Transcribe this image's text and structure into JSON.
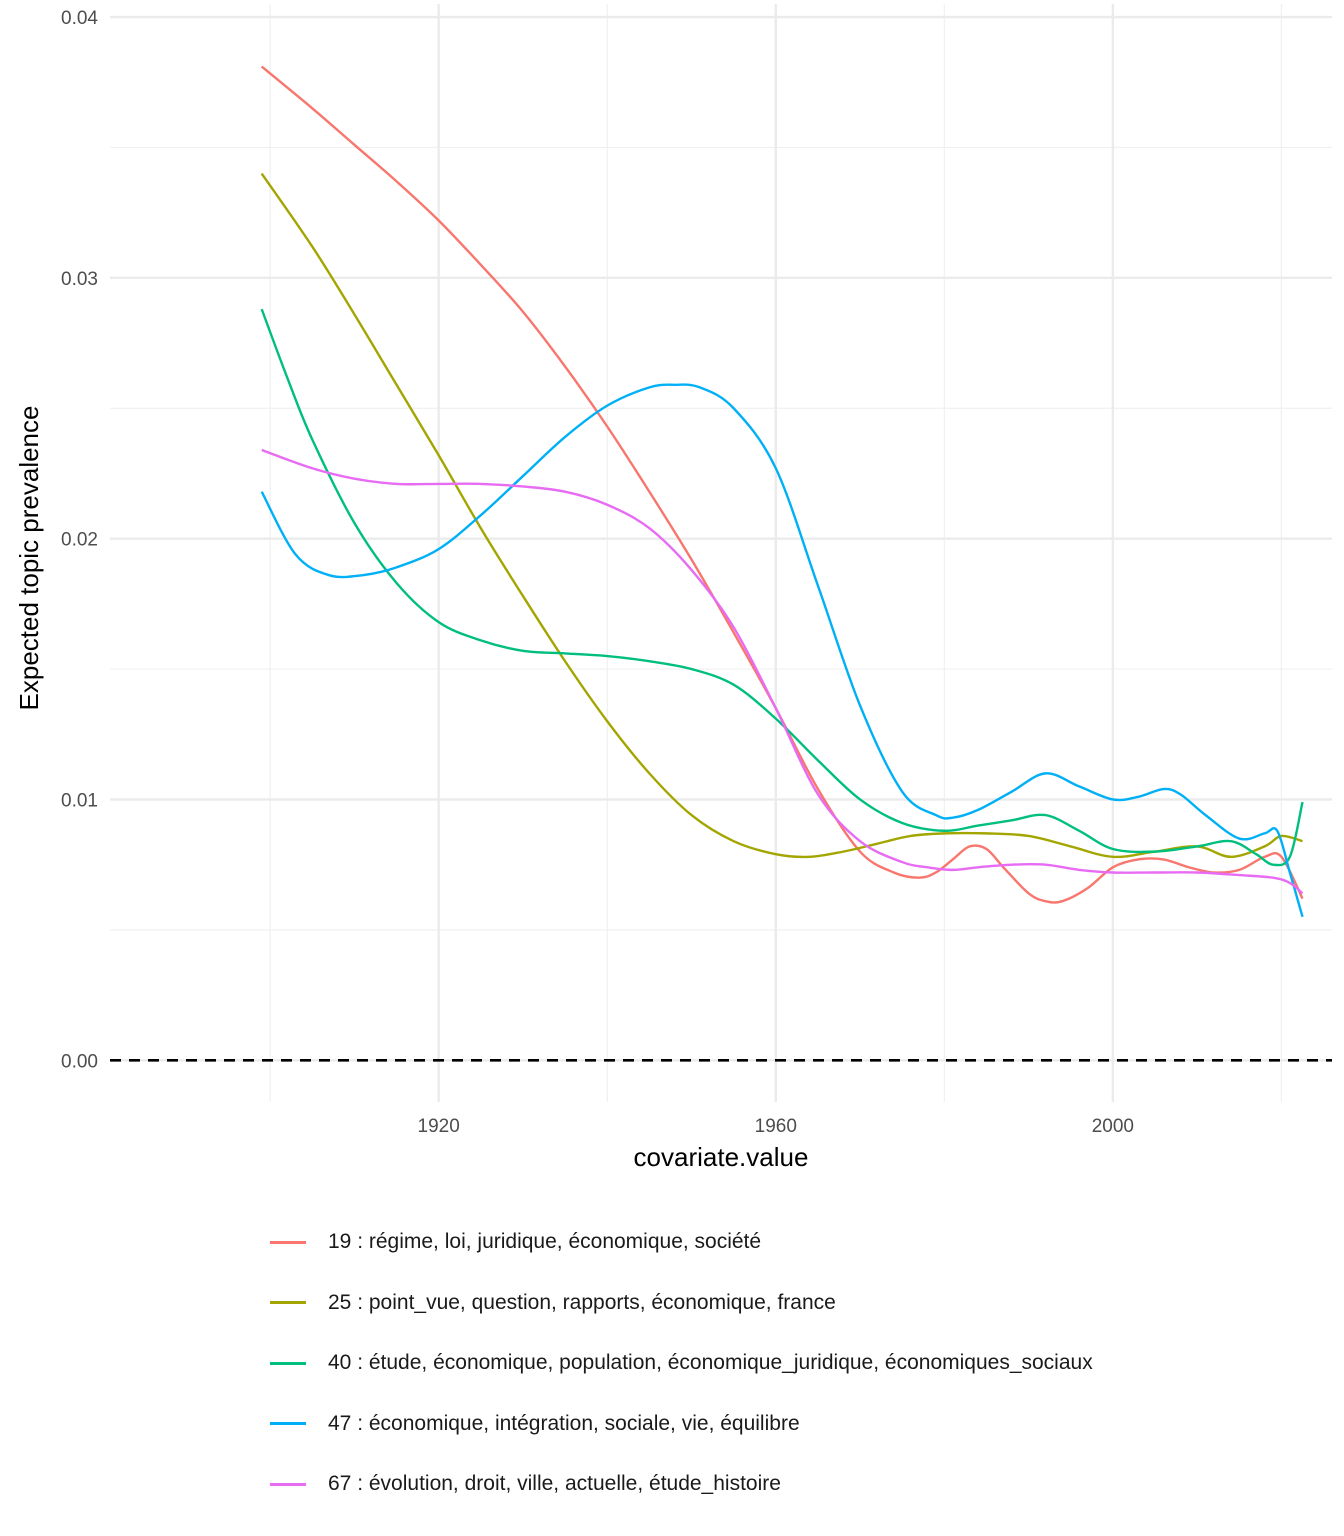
{
  "chart_data": {
    "type": "line",
    "title": "",
    "xlabel": "covariate.value",
    "ylabel": "Expected topic prevalence",
    "xlim": [
      1881,
      2026
    ],
    "ylim": [
      -0.0016,
      0.0405
    ],
    "x_ticks": [
      1920,
      1960,
      2000
    ],
    "x_tick_labels": [
      "1920",
      "1960",
      "2000"
    ],
    "y_ticks": [
      0.0,
      0.01,
      0.02,
      0.03,
      0.04
    ],
    "y_tick_labels": [
      "0.00",
      "0.01",
      "0.02",
      "0.03",
      "0.04"
    ],
    "reference_line": {
      "y": 0,
      "style": "dashed",
      "color": "#000000"
    },
    "grid": true,
    "legend_position": "bottom",
    "series": [
      {
        "name": "19 : régime, loi, juridique, économique, société",
        "color": "#F8766D",
        "x": [
          1899,
          1905,
          1910,
          1915,
          1920,
          1925,
          1930,
          1935,
          1940,
          1945,
          1950,
          1955,
          1960,
          1965,
          1970,
          1974,
          1977,
          1979,
          1981,
          1983,
          1985,
          1987,
          1990,
          1992,
          1994,
          1997,
          2000,
          2003,
          2006,
          2009,
          2012,
          2015,
          2018,
          2020,
          2022.5
        ],
        "y": [
          0.0381,
          0.0365,
          0.0351,
          0.0337,
          0.0322,
          0.0305,
          0.0287,
          0.0266,
          0.0243,
          0.0218,
          0.0192,
          0.0164,
          0.0135,
          0.0104,
          0.008,
          0.0072,
          0.007,
          0.0072,
          0.0077,
          0.0082,
          0.0081,
          0.0074,
          0.0064,
          0.0061,
          0.0061,
          0.0066,
          0.0074,
          0.0077,
          0.0077,
          0.0074,
          0.0072,
          0.0073,
          0.0078,
          0.0078,
          0.0062
        ]
      },
      {
        "name": "25 : point_vue, question, rapports, économique, france",
        "color": "#A3A500",
        "x": [
          1899,
          1905,
          1910,
          1915,
          1920,
          1925,
          1930,
          1935,
          1940,
          1945,
          1950,
          1955,
          1960,
          1964,
          1968,
          1972,
          1976,
          1980,
          1985,
          1990,
          1995,
          2000,
          2005,
          2010,
          2014,
          2018,
          2020,
          2022.5
        ],
        "y": [
          0.034,
          0.0312,
          0.0286,
          0.0259,
          0.0232,
          0.0204,
          0.0178,
          0.0153,
          0.013,
          0.011,
          0.0094,
          0.0084,
          0.0079,
          0.0078,
          0.008,
          0.0083,
          0.0086,
          0.0087,
          0.0087,
          0.0086,
          0.0082,
          0.0078,
          0.008,
          0.0082,
          0.0078,
          0.0082,
          0.0086,
          0.0084
        ]
      },
      {
        "name": "40 : étude, économique, population, économique_juridique, économiques_sociaux",
        "color": "#00BF7D",
        "x": [
          1899,
          1902,
          1905,
          1910,
          1915,
          1920,
          1925,
          1930,
          1935,
          1940,
          1945,
          1950,
          1955,
          1960,
          1965,
          1970,
          1975,
          1980,
          1984,
          1988,
          1992,
          1996,
          2000,
          2005,
          2010,
          2014,
          2017,
          2019,
          2021,
          2022.5
        ],
        "y": [
          0.0288,
          0.0262,
          0.0238,
          0.0206,
          0.0183,
          0.0168,
          0.0161,
          0.0157,
          0.0156,
          0.0155,
          0.0153,
          0.015,
          0.0144,
          0.0131,
          0.0115,
          0.01,
          0.0091,
          0.0088,
          0.009,
          0.0092,
          0.0094,
          0.0088,
          0.0081,
          0.008,
          0.0082,
          0.0084,
          0.0079,
          0.0075,
          0.0078,
          0.0099
        ]
      },
      {
        "name": "47 : économique, intégration, sociale, vie, équilibre",
        "color": "#00B0F6",
        "x": [
          1899,
          1903,
          1907,
          1911,
          1915,
          1920,
          1925,
          1930,
          1935,
          1940,
          1945,
          1948,
          1951,
          1955,
          1960,
          1965,
          1970,
          1975,
          1979,
          1981,
          1984,
          1988,
          1992,
          1996,
          2000,
          2003,
          2006,
          2008,
          2011,
          2015,
          2018,
          2019.5,
          2021,
          2022.5
        ],
        "y": [
          0.0218,
          0.0194,
          0.0186,
          0.0186,
          0.0189,
          0.0196,
          0.0209,
          0.0224,
          0.0239,
          0.0251,
          0.0258,
          0.0259,
          0.0258,
          0.025,
          0.0227,
          0.0182,
          0.0136,
          0.0103,
          0.0094,
          0.0093,
          0.0096,
          0.0103,
          0.011,
          0.0105,
          0.01,
          0.0101,
          0.0104,
          0.0102,
          0.0094,
          0.0085,
          0.0087,
          0.0088,
          0.0072,
          0.0055
        ]
      },
      {
        "name": "67 : évolution, droit, ville, actuelle, étude_histoire",
        "color": "#E76BF3",
        "x": [
          1899,
          1905,
          1910,
          1915,
          1920,
          1925,
          1930,
          1935,
          1940,
          1945,
          1950,
          1955,
          1960,
          1965,
          1970,
          1975,
          1978,
          1981,
          1984,
          1988,
          1992,
          1996,
          2000,
          2005,
          2010,
          2015,
          2019,
          2021,
          2022.5
        ],
        "y": [
          0.0234,
          0.0227,
          0.0223,
          0.0221,
          0.0221,
          0.0221,
          0.022,
          0.0218,
          0.0213,
          0.0204,
          0.0188,
          0.0166,
          0.0135,
          0.0102,
          0.0084,
          0.0076,
          0.0074,
          0.0073,
          0.0074,
          0.0075,
          0.0075,
          0.0073,
          0.0072,
          0.0072,
          0.0072,
          0.0071,
          0.007,
          0.0068,
          0.0064
        ]
      }
    ]
  }
}
